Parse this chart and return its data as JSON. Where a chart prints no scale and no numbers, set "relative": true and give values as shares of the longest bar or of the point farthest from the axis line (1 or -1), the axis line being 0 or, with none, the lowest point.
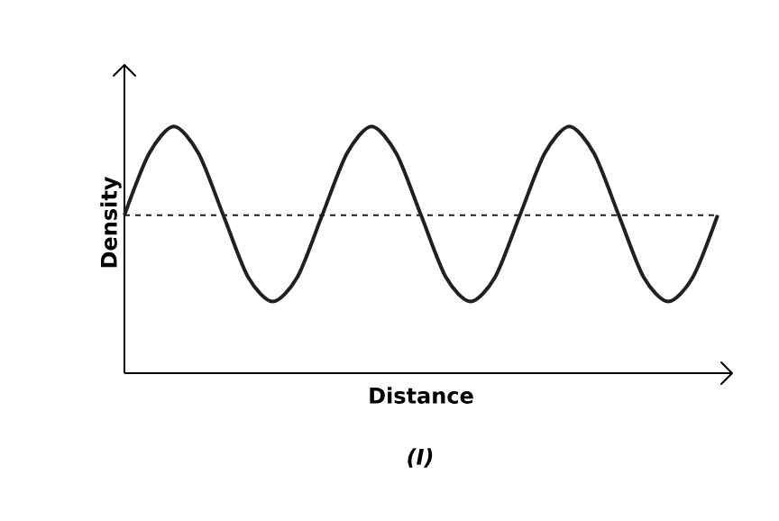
{
  "chart_data": {
    "type": "line",
    "relative": true,
    "xlabel": "Distance",
    "ylabel": "Density",
    "categories": [
      null,
      null,
      null,
      null,
      null,
      null,
      null,
      null,
      null,
      null,
      null,
      null,
      null,
      null,
      null,
      null,
      null,
      null,
      null,
      null,
      null,
      null,
      null,
      null,
      null
    ],
    "series": [
      {
        "color": "#231f20",
        "values": [
          0.64,
          0.89,
          1.0,
          0.89,
          0.64,
          0.39,
          0.29,
          0.39,
          0.64,
          0.89,
          1.0,
          0.89,
          0.64,
          0.39,
          0.29,
          0.39,
          0.64,
          0.89,
          1.0,
          0.89,
          0.64,
          0.39,
          0.29,
          0.39,
          0.64
        ]
      }
    ],
    "ref_lines": [
      {
        "axis": "y",
        "value": 0.64,
        "line_style": "dashed",
        "color": "#231f20"
      }
    ],
    "annotations": [
      "(I)"
    ],
    "marker": "none",
    "line_style": "solid"
  }
}
